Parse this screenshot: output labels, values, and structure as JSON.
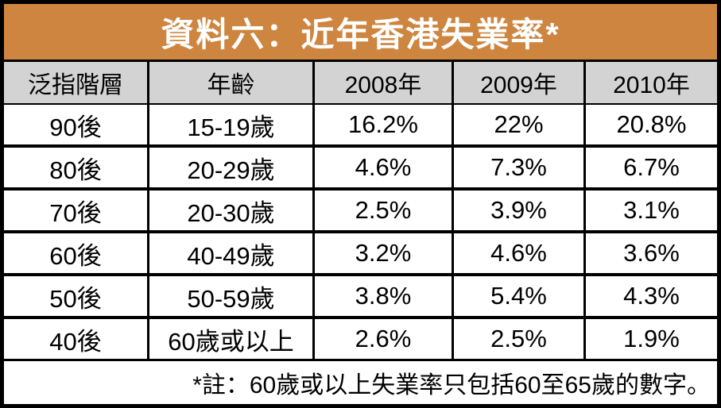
{
  "title": "資料六：近年香港失業率*",
  "colors": {
    "title_bg": "#CD853F",
    "title_text": "#FFFFFF",
    "header_bg": "#D3D3D3",
    "row_bg": "#FFFFFF",
    "grid_border": "#000000",
    "body_text": "#000000"
  },
  "table": {
    "columns": [
      "泛指階層",
      "年齡",
      "2008年",
      "2009年",
      "2010年"
    ],
    "rows": [
      [
        "90後",
        "15-19歲",
        "16.2%",
        "22%",
        "20.8%"
      ],
      [
        "80後",
        "20-29歲",
        "4.6%",
        "7.3%",
        "6.7%"
      ],
      [
        "70後",
        "20-30歲",
        "2.5%",
        "3.9%",
        "3.1%"
      ],
      [
        "60後",
        "40-49歲",
        "3.2%",
        "4.6%",
        "3.6%"
      ],
      [
        "50後",
        "50-59歲",
        "3.8%",
        "5.4%",
        "4.3%"
      ],
      [
        "40後",
        "60歲或以上",
        "2.6%",
        "2.5%",
        "1.9%"
      ]
    ],
    "footnote": "*註：60歲或以上失業率只包括60至65歲的數字。"
  },
  "chart_data": {
    "type": "table",
    "title": "資料六：近年香港失業率*",
    "columns": [
      "泛指階層",
      "年齡",
      "2008年",
      "2009年",
      "2010年"
    ],
    "categories": [
      "90後 15-19歲",
      "80後 20-29歲",
      "70後 20-30歲",
      "60後 40-49歲",
      "50後 50-59歲",
      "40後 60歲或以上"
    ],
    "series": [
      {
        "name": "2008年",
        "values": [
          16.2,
          4.6,
          2.5,
          3.2,
          3.8,
          2.6
        ]
      },
      {
        "name": "2009年",
        "values": [
          22,
          7.3,
          3.9,
          4.6,
          5.4,
          2.5
        ]
      },
      {
        "name": "2010年",
        "values": [
          20.8,
          6.7,
          3.1,
          3.6,
          4.3,
          1.9
        ]
      }
    ],
    "unit": "%",
    "footnote": "*註：60歲或以上失業率只包括60至65歲的數字。"
  }
}
